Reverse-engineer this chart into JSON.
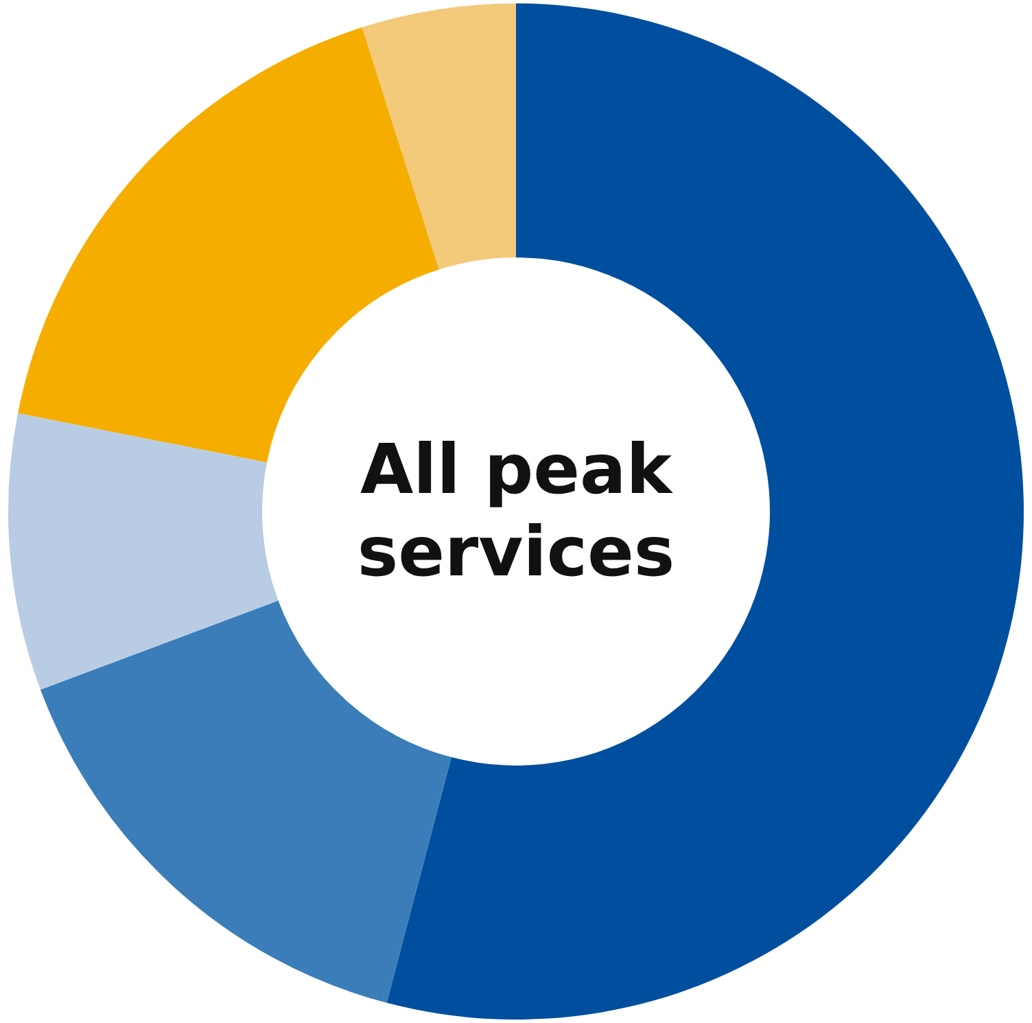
{
  "chart_data": {
    "type": "donut",
    "title": "All peak services",
    "categories": [
      null,
      null,
      null,
      null,
      null
    ],
    "values": [
      54.1,
      15.2,
      8.8,
      17.0,
      4.9
    ],
    "colors": [
      "#004f9f",
      "#3a7db8",
      "#b8cce4",
      "#f5ae00",
      "#f3c97a"
    ],
    "legend": false
  }
}
